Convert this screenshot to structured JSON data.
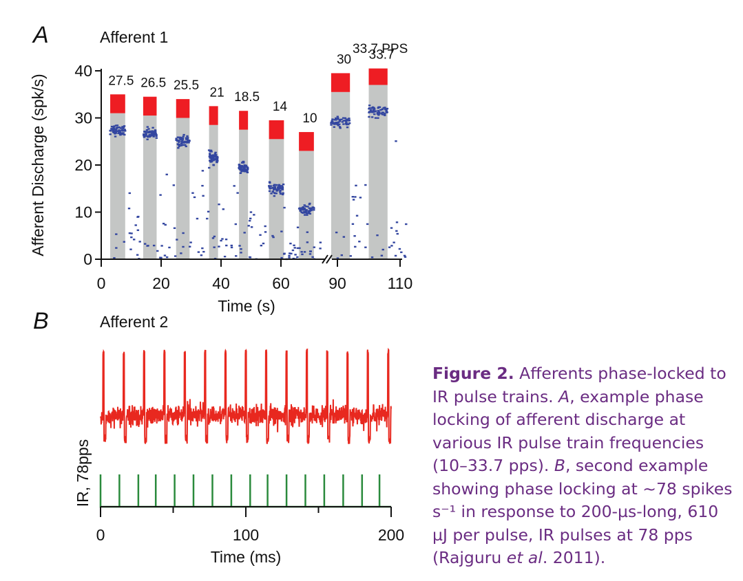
{
  "colors": {
    "bar": "#c4c6c5",
    "bar_top": "#ee1d23",
    "spike_dots": "#3346a0",
    "trace_red": "#e8281f",
    "trace_green": "#2a8a3c",
    "caption": "#6a2c82"
  },
  "chart_data": [
    {
      "type": "bar",
      "panel_label": "A",
      "title": "Afferent 1",
      "xlabel": "Time (s)",
      "ylabel": "Afferent Discharge (spk/s)",
      "ylim": [
        0,
        40
      ],
      "yticks": [
        0,
        10,
        20,
        30,
        40
      ],
      "xticks": [
        "0",
        "20",
        "40",
        "60",
        "90",
        "110"
      ],
      "axis_break_between": [
        "60",
        "90"
      ],
      "unit_annotation": "33.7 PPS",
      "bar_labels": [
        "27.5",
        "26.5",
        "25.5",
        "21",
        "18.5",
        "14",
        "10",
        "30",
        "33.7"
      ],
      "bars": [
        {
          "t_start": 3,
          "t_end": 8,
          "grey_top": 31,
          "red_top": 35,
          "cluster": 27.5
        },
        {
          "t_start": 14,
          "t_end": 18.5,
          "grey_top": 30.5,
          "red_top": 34.5,
          "cluster": 26.5
        },
        {
          "t_start": 25,
          "t_end": 29.5,
          "grey_top": 30,
          "red_top": 34,
          "cluster": 25
        },
        {
          "t_start": 36,
          "t_end": 39,
          "grey_top": 28.5,
          "red_top": 32.5,
          "cluster": 21.5
        },
        {
          "t_start": 46,
          "t_end": 49,
          "grey_top": 27.5,
          "red_top": 31.5,
          "cluster": 19.5
        },
        {
          "t_start": 56,
          "t_end": 61,
          "grey_top": 25.5,
          "red_top": 29.5,
          "cluster": 15
        },
        {
          "t_start": 66,
          "t_end": 71,
          "grey_top": 23,
          "red_top": 27,
          "cluster": 10.5
        },
        {
          "t_start": 88,
          "t_end": 94,
          "grey_top": 35.5,
          "red_top": 39.5,
          "cluster": 29
        },
        {
          "t_start": 100,
          "t_end": 106,
          "grey_top": 37,
          "red_top": 40.5,
          "cluster": 31.5
        }
      ],
      "legend": "none",
      "grid": false
    },
    {
      "type": "line",
      "panel_label": "B",
      "title": "Afferent 2",
      "xlabel": "Time (ms)",
      "ylabel": "IR, 78pps",
      "xlim": [
        0,
        200
      ],
      "xticks": [
        0,
        100,
        200
      ],
      "spike_times_ms": [
        2,
        16,
        30,
        44,
        58,
        72,
        86,
        100,
        114,
        128,
        142,
        156,
        170,
        184,
        198
      ],
      "ir_pulse_times_ms": [
        0,
        13,
        26,
        38,
        51,
        64,
        77,
        90,
        103,
        115,
        128,
        141,
        154,
        167,
        180,
        192
      ],
      "legend": "none",
      "grid": false
    }
  ],
  "caption": {
    "label": "Figure 2.",
    "part1": " Afferents phase-locked to IR pulse trains. ",
    "a": "A",
    "part2": ", example phase locking of afferent discharge at various IR pulse train frequencies (10–33.7 pps). ",
    "b": "B",
    "part3": ", second example showing phase locking at ~78 spikes s⁻¹ in response to 200-µs-long, 610 µJ per pulse, IR pulses at 78 pps (Rajguru ",
    "etal": "et al",
    "part4": ". 2011)."
  }
}
